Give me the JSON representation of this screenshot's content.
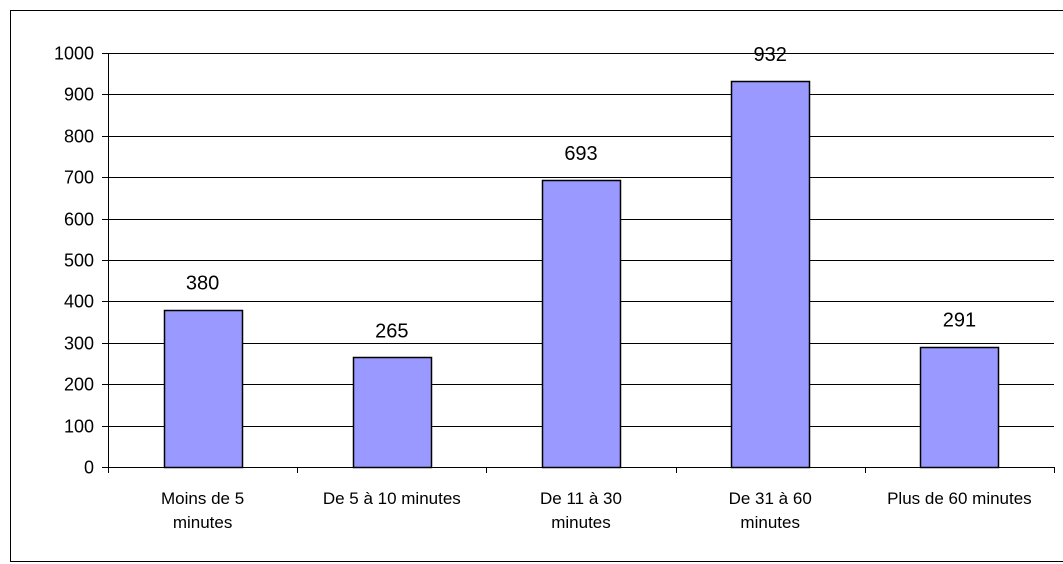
{
  "chart_data": {
    "type": "bar",
    "title": "",
    "xlabel": "",
    "ylabel": "",
    "categories": [
      [
        "Moins de 5",
        "minutes"
      ],
      [
        "De 5 à 10 minutes"
      ],
      [
        "De 11 à 30",
        "minutes"
      ],
      [
        "De 31 à 60",
        "minutes"
      ],
      [
        "Plus de 60 minutes"
      ]
    ],
    "values": [
      380,
      265,
      693,
      932,
      291
    ],
    "data_labels": [
      "380",
      "265",
      "693",
      "932",
      "291"
    ],
    "ylim": [
      0,
      1000
    ],
    "yticks": [
      0,
      100,
      200,
      300,
      400,
      500,
      600,
      700,
      800,
      900,
      1000
    ],
    "ytick_labels": [
      "0",
      "100",
      "200",
      "300",
      "400",
      "500",
      "600",
      "700",
      "800",
      "900",
      "1000"
    ],
    "grid": true,
    "legend": "none",
    "colors": {
      "bar_fill": "#9999ff",
      "bar_stroke": "#000000",
      "grid": "#000000",
      "background": "#ffffff"
    }
  }
}
